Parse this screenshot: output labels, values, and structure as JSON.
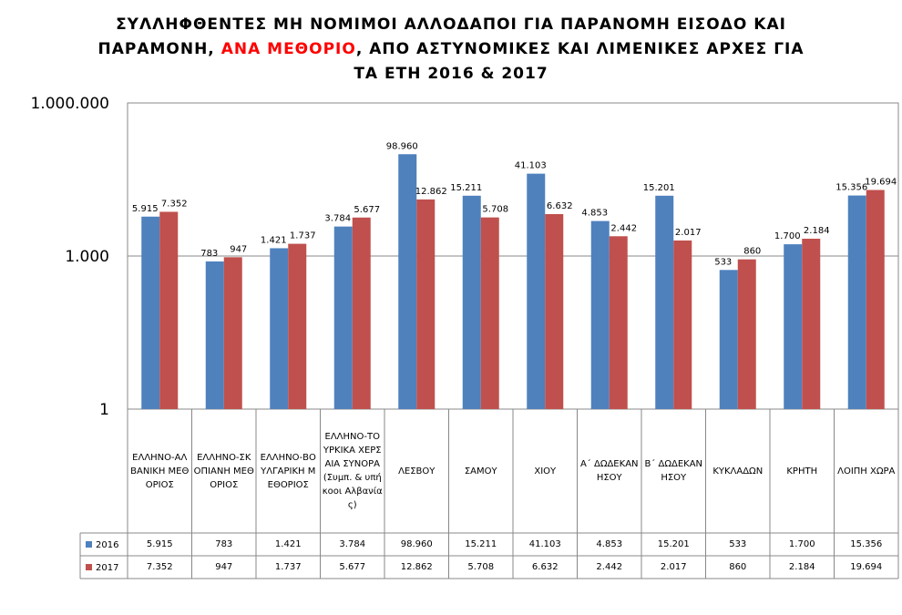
{
  "chart_data": {
    "type": "bar",
    "title": [
      "ΣΥΛΛΗΦΘΕΝΤΕΣ ΜΗ ΝΟΜΙΜΟΙ ΑΛΛΟΔΑΠΟΙ ΓΙΑ ΠΑΡΑΝΟΜΗ ΕΙΣΟΔΟ ΚΑΙ",
      "ΠΑΡΑΜΟΝΗ, ",
      "ΑΝΑ ΜΕΘΟΡΙΟ",
      ", ΑΠΟ ΑΣΤΥΝΟΜΙΚΕΣ ΚΑΙ ΛΙΜΕΝΙΚΕΣ ΑΡΧΕΣ ΓΙΑ",
      "ΤΑ ΕΤΗ 2016 & 2017"
    ],
    "title_highlight_color": "#ff0000",
    "categories": [
      "ΕΛΛΗΝΟ-ΑΛΒΑΝΙΚΗ ΜΕΘΟΡΙΟΣ",
      "ΕΛΛΗΝΟ-ΣΚΟΠΙΑΝΗ ΜΕΘΟΡΙΟΣ",
      "ΕΛΛΗΝΟ-ΒΟΥΛΓΑΡΙΚΗ ΜΕΘΟΡΙΟΣ",
      "ΕΛΛΗΝΟ-ΤΟΥΡΚΙΚΑ ΧΕΡΣΑΙΑ ΣΥΝΟΡΑ (Συμπ. & υπήκοοι Αλβανίας)",
      "ΛΕΣΒΟΥ",
      "ΣΑΜΟΥ",
      "ΧΙΟΥ",
      "Α΄ ΔΩΔΕΚΑΝΗΣΟΥ",
      "Β΄ ΔΩΔΕΚΑΝΗΣΟΥ",
      "ΚΥΚΛΑΔΩΝ",
      "ΚΡΗΤΗ",
      "ΛΟΙΠΗ ΧΩΡΑ"
    ],
    "series": [
      {
        "name": "2016",
        "color": "#4f81bd",
        "values": [
          5915,
          783,
          1421,
          3784,
          98960,
          15211,
          41103,
          4853,
          15201,
          533,
          1700,
          15356
        ],
        "value_labels": [
          "5.915",
          "783",
          "1.421",
          "3.784",
          "98.960",
          "15.211",
          "41.103",
          "4.853",
          "15.201",
          "533",
          "1.700",
          "15.356"
        ]
      },
      {
        "name": "2017",
        "color": "#c0504d",
        "values": [
          7352,
          947,
          1737,
          5677,
          12862,
          5708,
          6632,
          2442,
          2017,
          860,
          2184,
          19694
        ],
        "value_labels": [
          "7.352",
          "947",
          "1.737",
          "5.677",
          "12.862",
          "5.708",
          "6.632",
          "2.442",
          "2.017",
          "860",
          "2.184",
          "19.694"
        ]
      }
    ],
    "log_scale": true,
    "grid": true,
    "ylim": [
      1,
      1000000
    ],
    "yticks": [
      {
        "value": 1,
        "label": "1"
      },
      {
        "value": 1000,
        "label": "1.000"
      },
      {
        "value": 1000000,
        "label": "1.000.000"
      }
    ]
  }
}
